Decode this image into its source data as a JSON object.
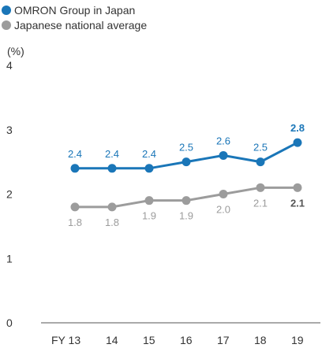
{
  "chart_data": {
    "type": "line",
    "x_prefix": "FY",
    "categories": [
      "13",
      "14",
      "15",
      "16",
      "17",
      "18",
      "19"
    ],
    "y_unit": "(%)",
    "ylim": [
      0,
      4
    ],
    "yticks": [
      "0",
      "1",
      "2",
      "3",
      "4"
    ],
    "grid": false,
    "legend_position": "top-left",
    "series": [
      {
        "name": "OMRON Group in Japan",
        "color": "#1a76b8",
        "values": [
          2.4,
          2.4,
          2.4,
          2.5,
          2.6,
          2.5,
          2.8
        ],
        "labels": [
          "2.4",
          "2.4",
          "2.4",
          "2.5",
          "2.6",
          "2.5",
          "2.8"
        ]
      },
      {
        "name": "Japanese national average",
        "color": "#9c9c9c",
        "values": [
          1.8,
          1.8,
          1.9,
          1.9,
          2.0,
          2.1,
          2.1
        ],
        "labels": [
          "1.8",
          "1.8",
          "1.9",
          "1.9",
          "2.0",
          "2.1",
          "2.1"
        ]
      }
    ]
  }
}
